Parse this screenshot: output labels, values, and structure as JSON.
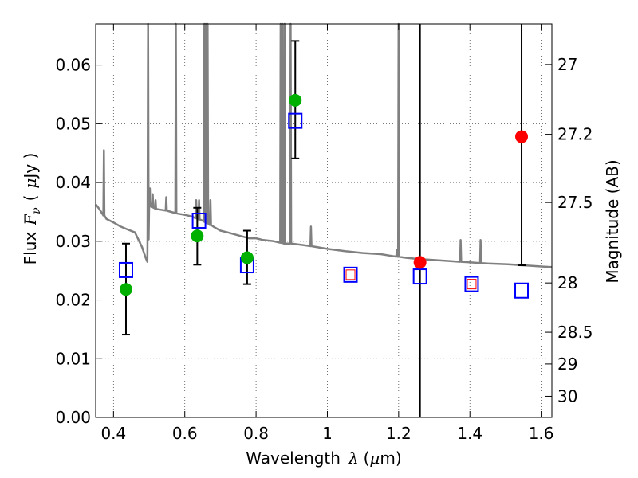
{
  "chart_data": {
    "type": "scatter",
    "xlabel": "Wavelength",
    "xlabel_symbol": "λ",
    "xlabel_unit_open": "(",
    "xlabel_unit_mu": "μ",
    "xlabel_unit_rest": "m)",
    "ylabel": "Flux",
    "ylabel_symbol": "F",
    "ylabel_symbol_sub": "ν",
    "ylabel_unit_open": "(",
    "ylabel_unit_mu": "μ",
    "ylabel_unit_rest": "Jy )",
    "y2label": "Magnitude (AB)",
    "xlim": [
      0.35,
      1.63
    ],
    "ylim": [
      0.0,
      0.067
    ],
    "grid": true,
    "x_ticks": [
      0.4,
      0.6,
      0.8,
      1.0,
      1.2,
      1.4,
      1.6
    ],
    "x_tick_labels": [
      "0.4",
      "0.6",
      "0.8",
      "1",
      "1.2",
      "1.4",
      "1.6"
    ],
    "y_ticks": [
      0.0,
      0.01,
      0.02,
      0.03,
      0.04,
      0.05,
      0.06
    ],
    "y_tick_labels": [
      "0.00",
      "0.01",
      "0.02",
      "0.03",
      "0.04",
      "0.05",
      "0.06"
    ],
    "y2_ticks": [
      {
        "label": "27",
        "flux": 0.0601
      },
      {
        "label": "27.2",
        "flux": 0.0482
      },
      {
        "label": "27.5",
        "flux": 0.0366
      },
      {
        "label": "28",
        "flux": 0.0229
      },
      {
        "label": "28.5",
        "flux": 0.0145
      },
      {
        "label": "29",
        "flux": 0.0091
      },
      {
        "label": "30",
        "flux": 0.0036
      }
    ],
    "colors": {
      "spectrum": "#808080",
      "detected": "#00b000",
      "upper_limit": "#ff0000",
      "model": "#0000ff",
      "errorbar": "#000000"
    },
    "series": [
      {
        "kind": "spectrum",
        "continuum": [
          [
            0.35,
            0.0363
          ],
          [
            0.36,
            0.0355
          ],
          [
            0.38,
            0.0338
          ],
          [
            0.4,
            0.0332
          ],
          [
            0.42,
            0.0325
          ],
          [
            0.44,
            0.032
          ],
          [
            0.46,
            0.0315
          ],
          [
            0.48,
            0.029
          ],
          [
            0.49,
            0.0272
          ],
          [
            0.495,
            0.0265
          ],
          [
            0.5,
            0.036
          ],
          [
            0.52,
            0.0355
          ],
          [
            0.55,
            0.0352
          ],
          [
            0.58,
            0.0347
          ],
          [
            0.6,
            0.0345
          ],
          [
            0.62,
            0.0342
          ],
          [
            0.65,
            0.0335
          ],
          [
            0.68,
            0.0325
          ],
          [
            0.7,
            0.0318
          ],
          [
            0.72,
            0.0315
          ],
          [
            0.75,
            0.031
          ],
          [
            0.78,
            0.0305
          ],
          [
            0.8,
            0.0305
          ],
          [
            0.82,
            0.0302
          ],
          [
            0.85,
            0.03
          ],
          [
            0.88,
            0.0296
          ],
          [
            0.9,
            0.0296
          ],
          [
            0.95,
            0.0292
          ],
          [
            1.0,
            0.0287
          ],
          [
            1.05,
            0.0283
          ],
          [
            1.1,
            0.028
          ],
          [
            1.15,
            0.0278
          ],
          [
            1.18,
            0.0275
          ],
          [
            1.22,
            0.0272
          ],
          [
            1.25,
            0.027
          ],
          [
            1.3,
            0.0268
          ],
          [
            1.35,
            0.0266
          ],
          [
            1.4,
            0.0264
          ],
          [
            1.45,
            0.0262
          ],
          [
            1.5,
            0.0261
          ],
          [
            1.55,
            0.0259
          ],
          [
            1.6,
            0.0257
          ],
          [
            1.63,
            0.0256
          ]
        ],
        "lines": [
          {
            "x": 0.373,
            "peak": 0.0455
          },
          {
            "x": 0.497,
            "peak": 0.067
          },
          {
            "x": 0.502,
            "peak": 0.039
          },
          {
            "x": 0.51,
            "peak": 0.038
          },
          {
            "x": 0.518,
            "peak": 0.037
          },
          {
            "x": 0.548,
            "peak": 0.0375
          },
          {
            "x": 0.575,
            "peak": 0.067
          },
          {
            "x": 0.632,
            "peak": 0.037
          },
          {
            "x": 0.64,
            "peak": 0.037
          },
          {
            "x": 0.655,
            "peak": 0.067
          },
          {
            "x": 0.659,
            "peak": 0.067
          },
          {
            "x": 0.664,
            "peak": 0.067
          },
          {
            "x": 0.672,
            "peak": 0.037
          },
          {
            "x": 0.869,
            "peak": 0.067
          },
          {
            "x": 0.874,
            "peak": 0.067
          },
          {
            "x": 0.88,
            "peak": 0.067
          },
          {
            "x": 0.897,
            "peak": 0.067
          },
          {
            "x": 0.954,
            "peak": 0.0325
          },
          {
            "x": 1.195,
            "peak": 0.0285
          },
          {
            "x": 1.2,
            "peak": 0.067
          },
          {
            "x": 1.374,
            "peak": 0.0302
          },
          {
            "x": 1.43,
            "peak": 0.0302
          }
        ]
      },
      {
        "kind": "errorbars",
        "points": [
          {
            "x": 0.435,
            "low": 0.0141,
            "high": 0.0296
          },
          {
            "x": 0.635,
            "low": 0.026,
            "high": 0.0357
          },
          {
            "x": 0.775,
            "low": 0.0227,
            "high": 0.0318
          },
          {
            "x": 0.91,
            "low": 0.0441,
            "high": 0.0641
          },
          {
            "x": 1.26,
            "low": 0.0,
            "high": 0.067
          },
          {
            "x": 1.545,
            "low": 0.0259,
            "high": 0.067
          }
        ]
      },
      {
        "kind": "observed",
        "points": [
          {
            "x": 0.435,
            "y": 0.0218,
            "status": "detected"
          },
          {
            "x": 0.635,
            "y": 0.0309,
            "status": "detected"
          },
          {
            "x": 0.775,
            "y": 0.0272,
            "status": "detected"
          },
          {
            "x": 0.91,
            "y": 0.054,
            "status": "detected"
          },
          {
            "x": 1.26,
            "y": 0.0264,
            "status": "upper_limit"
          },
          {
            "x": 1.545,
            "y": 0.0478,
            "status": "upper_limit"
          }
        ]
      },
      {
        "kind": "model",
        "points": [
          {
            "x": 0.435,
            "y": 0.0251
          },
          {
            "x": 0.64,
            "y": 0.0335
          },
          {
            "x": 0.775,
            "y": 0.0259
          },
          {
            "x": 0.91,
            "y": 0.0505
          },
          {
            "x": 1.065,
            "y": 0.0243
          },
          {
            "x": 1.26,
            "y": 0.024
          },
          {
            "x": 1.405,
            "y": 0.0227
          },
          {
            "x": 1.545,
            "y": 0.0216
          }
        ]
      },
      {
        "kind": "model_inner",
        "points": [
          {
            "x": 1.065,
            "y": 0.0243
          },
          {
            "x": 1.405,
            "y": 0.0227
          }
        ]
      }
    ]
  }
}
